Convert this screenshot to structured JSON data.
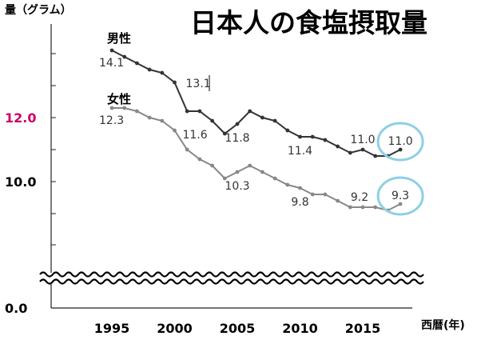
{
  "title": "日本人の食塩摂取量",
  "chart_data": {
    "type": "line",
    "title": "日本人の食塩摂取量",
    "ylabel": "量（グラム）",
    "xlabel": "西暦(年)",
    "ylim": [
      0,
      15
    ],
    "axis_break": true,
    "y_ticks": [
      "0.0",
      "10.0",
      "12.0"
    ],
    "x_ticks": [
      "1995",
      "2000",
      "2005",
      "2010",
      "2015"
    ],
    "highlight_tick": "12.0",
    "x": [
      1995,
      1996,
      1997,
      1998,
      1999,
      2000,
      2001,
      2002,
      2003,
      2004,
      2005,
      2006,
      2007,
      2008,
      2009,
      2010,
      2011,
      2012,
      2013,
      2014,
      2015,
      2016,
      2017,
      2018
    ],
    "series": [
      {
        "name": "男性",
        "color": "#333333",
        "values": [
          14.1,
          13.9,
          13.7,
          13.5,
          13.4,
          13.1,
          12.2,
          12.2,
          11.9,
          11.5,
          11.8,
          12.2,
          12.0,
          11.9,
          11.6,
          11.4,
          11.4,
          11.3,
          11.1,
          10.9,
          11.0,
          10.8,
          10.8,
          11.0
        ],
        "labels": [
          {
            "year": 1995,
            "text": "14.1"
          },
          {
            "year": 2000,
            "text": "13.1"
          },
          {
            "year": 2005,
            "text": "11.8"
          },
          {
            "year": 2010,
            "text": "11.4"
          },
          {
            "year": 2015,
            "text": "11.0"
          },
          {
            "year": 2018,
            "text": "11.0"
          }
        ]
      },
      {
        "name": "女性",
        "color": "#888888",
        "values": [
          12.3,
          12.3,
          12.2,
          12.0,
          11.9,
          11.6,
          11.0,
          10.7,
          10.5,
          10.1,
          10.3,
          10.5,
          10.3,
          10.1,
          9.9,
          9.8,
          9.6,
          9.6,
          9.4,
          9.2,
          9.2,
          9.2,
          9.1,
          9.3
        ],
        "labels": [
          {
            "year": 1995,
            "text": "12.3"
          },
          {
            "year": 2000,
            "text": "11.6"
          },
          {
            "year": 2005,
            "text": "10.3"
          },
          {
            "year": 2010,
            "text": "9.8"
          },
          {
            "year": 2015,
            "text": "9.2"
          },
          {
            "year": 2018,
            "text": "9.3"
          }
        ]
      }
    ],
    "highlight_circles": [
      {
        "series": "男性",
        "year": 2018,
        "color": "#8ecfe3"
      },
      {
        "series": "女性",
        "year": 2018,
        "color": "#8ecfe3"
      }
    ],
    "tick_highlight_color": "#cc0066"
  }
}
